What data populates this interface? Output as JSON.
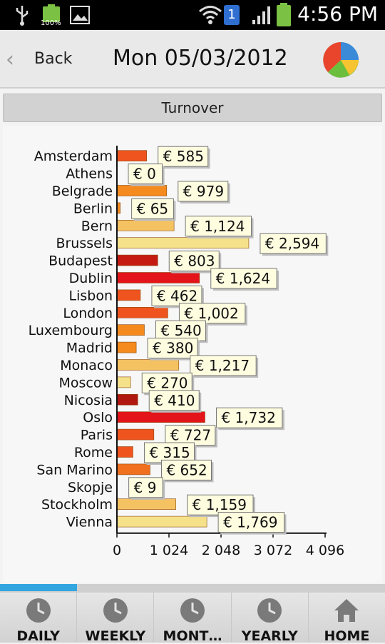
{
  "status_bar": {
    "time": "4:56 PM",
    "battery_label": "100%",
    "notification_count": "1",
    "icons": [
      "usb-icon",
      "battery-icon",
      "image-icon",
      "wifi-icon",
      "notification-badge-icon",
      "signal-icon",
      "battery-icon"
    ]
  },
  "header": {
    "back_label": "Back",
    "date": "Mon 05/03/2012",
    "pie_icon": "pie-chart-icon"
  },
  "section": {
    "title": "Turnover"
  },
  "chart_data": {
    "type": "bar",
    "orientation": "horizontal",
    "categories": [
      "Amsterdam",
      "Athens",
      "Belgrade",
      "Berlin",
      "Bern",
      "Brussels",
      "Budapest",
      "Dublin",
      "Lisbon",
      "London",
      "Luxembourg",
      "Madrid",
      "Monaco",
      "Moscow",
      "Nicosia",
      "Oslo",
      "Paris",
      "Rome",
      "San Marino",
      "Skopje",
      "Stockholm",
      "Vienna"
    ],
    "values": [
      585,
      0,
      979,
      65,
      1124,
      2594,
      803,
      1624,
      462,
      1002,
      540,
      380,
      1217,
      270,
      410,
      1732,
      727,
      315,
      652,
      9,
      1159,
      1769
    ],
    "labels": [
      "€ 585",
      "€ 0",
      "€ 979",
      "€ 65",
      "€ 1,124",
      "€ 2,594",
      "€ 803",
      "€ 1,624",
      "€ 462",
      "€ 1,002",
      "€ 540",
      "€ 380",
      "€ 1,217",
      "€ 270",
      "€ 410",
      "€ 1,732",
      "€ 727",
      "€ 315",
      "€ 652",
      "€ 9",
      "€ 1,159",
      "€ 1,769"
    ],
    "colors": [
      "#f0541e",
      "#f5e18a",
      "#f58a1e",
      "#f58a1e",
      "#f5c262",
      "#f5e18a",
      "#c41a12",
      "#e3141a",
      "#f0541e",
      "#f0541e",
      "#f58a1e",
      "#f58a1e",
      "#f5c262",
      "#f5e18a",
      "#b01810",
      "#e3141a",
      "#f0541e",
      "#f0541e",
      "#f07020",
      "#f5e18a",
      "#f5c262",
      "#f5e18a"
    ],
    "xlim": [
      0,
      4096
    ],
    "xticks": [
      0,
      1024,
      2048,
      3072,
      4096
    ],
    "xtick_labels": [
      "0",
      "1 024",
      "2 048",
      "3 072",
      "4 096"
    ],
    "grid": false
  },
  "progress": {
    "fraction": 0.2
  },
  "bottom_nav": {
    "items": [
      {
        "label": "DAILY",
        "icon": "clock-icon"
      },
      {
        "label": "WEEKLY",
        "icon": "clock-icon"
      },
      {
        "label": "MONT…",
        "icon": "clock-icon"
      },
      {
        "label": "YEARLY",
        "icon": "clock-icon"
      },
      {
        "label": "HOME",
        "icon": "home-icon"
      }
    ]
  }
}
